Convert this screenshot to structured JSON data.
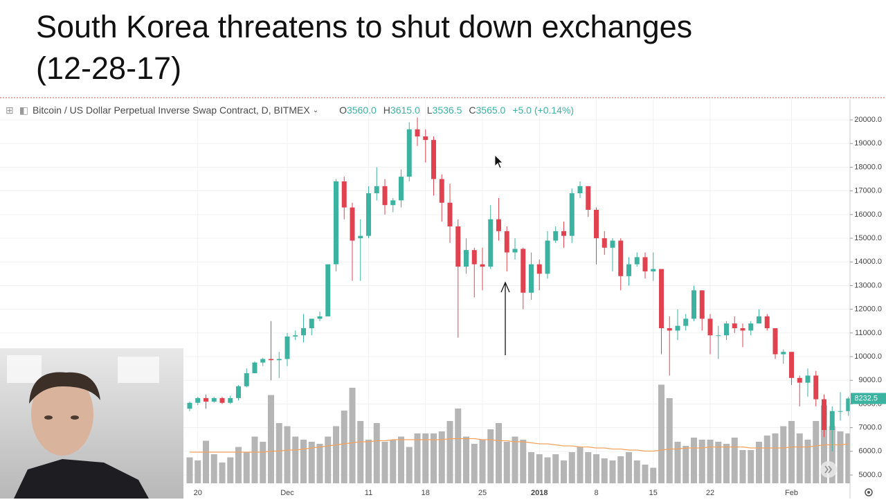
{
  "chart_data": {
    "type": "candlestick",
    "title": "South Korea threatens to shut down exchanges",
    "subtitle": "(12-28-17)",
    "symbol": "Bitcoin / US Dollar Perpetual Inverse Swap Contract, D, BITMEX",
    "ohlc_legend": [
      {
        "label": "O",
        "value": "3560.0"
      },
      {
        "label": "H",
        "value": "3615.0"
      },
      {
        "label": "L",
        "value": "3536.5"
      },
      {
        "label": "C",
        "value": "3565.0"
      }
    ],
    "change": "+5.0 (+0.14%)",
    "categories": [
      null,
      "20",
      null,
      null,
      null,
      null,
      null,
      null,
      null,
      null,
      null,
      null,
      "Dec",
      null,
      null,
      null,
      null,
      null,
      null,
      null,
      null,
      null,
      "11",
      null,
      null,
      null,
      null,
      null,
      null,
      "18",
      null,
      null,
      null,
      null,
      null,
      null,
      "25",
      null,
      null,
      null,
      null,
      null,
      null,
      "2018",
      null,
      null,
      null,
      null,
      null,
      null,
      "8",
      null,
      null,
      null,
      null,
      null,
      null,
      "15",
      null,
      null,
      null,
      null,
      null,
      null,
      "22",
      null,
      null,
      null,
      null,
      null,
      null,
      null,
      null,
      null,
      "Feb",
      null,
      null,
      null,
      null,
      null,
      null,
      null
    ],
    "open": [
      7800,
      8050,
      8250,
      8100,
      8250,
      8050,
      8250,
      8750,
      9300,
      9750,
      9900,
      9850,
      9900,
      10850,
      10900,
      11200,
      11600,
      11700,
      13900,
      17400,
      16300,
      15000,
      15100,
      16900,
      17200,
      16400,
      16600,
      17600,
      19600,
      19300,
      19150,
      17500,
      16500,
      15500,
      13800,
      14500,
      13900,
      13800,
      15800,
      15300,
      14400,
      14550,
      12700,
      13900,
      13500,
      14900,
      15300,
      15100,
      16900,
      17200,
      16200,
      15000,
      14600,
      14900,
      13400,
      13900,
      14200,
      13600,
      13700,
      11200,
      11100,
      11300,
      11600,
      12800,
      11600,
      10900,
      10900,
      11400,
      11200,
      11100,
      11400,
      11700,
      11200,
      10100,
      10200,
      9100,
      8900,
      9200,
      8200,
      6900,
      7700,
      7700
    ],
    "high": [
      8100,
      8300,
      8400,
      8300,
      8300,
      8350,
      8800,
      9500,
      9800,
      9950,
      11500,
      10200,
      11000,
      11100,
      11800,
      11600,
      11900,
      13900,
      17500,
      17600,
      16500,
      15800,
      17200,
      18000,
      17500,
      16700,
      17900,
      19900,
      20100,
      19600,
      19300,
      17700,
      17300,
      15800,
      15000,
      14600,
      14600,
      16400,
      16700,
      15500,
      15000,
      14600,
      14400,
      14100,
      15300,
      15500,
      15700,
      17100,
      17400,
      17200,
      16300,
      15300,
      15000,
      15000,
      14200,
      14400,
      14400,
      14400,
      13700,
      11700,
      12000,
      11800,
      13000,
      12800,
      11800,
      11300,
      11500,
      11700,
      11400,
      11500,
      12000,
      11800,
      11200,
      10300,
      10200,
      9200,
      9500,
      9400,
      8400,
      7900,
      8500,
      8300
    ],
    "low": [
      7700,
      7950,
      7800,
      8050,
      8000,
      8000,
      8150,
      8700,
      9300,
      9600,
      9000,
      9100,
      9600,
      10700,
      10600,
      10900,
      11500,
      11700,
      13600,
      15800,
      13200,
      13200,
      15000,
      16600,
      16000,
      16100,
      16300,
      17400,
      18900,
      18200,
      16800,
      15700,
      14800,
      10800,
      13500,
      12500,
      12800,
      13700,
      14900,
      13600,
      14100,
      12000,
      12400,
      12800,
      13300,
      14800,
      14600,
      14800,
      16700,
      15900,
      13900,
      14300,
      13600,
      12800,
      13000,
      13800,
      13300,
      13200,
      10100,
      9200,
      10700,
      11100,
      11500,
      11100,
      10100,
      9900,
      10700,
      11000,
      10400,
      10900,
      11400,
      11100,
      9900,
      9700,
      8800,
      7900,
      8300,
      7900,
      6600,
      6000,
      7300,
      7500
    ],
    "close": [
      8050,
      8250,
      8100,
      8250,
      8050,
      8250,
      8750,
      9300,
      9750,
      9900,
      9850,
      9900,
      10850,
      10900,
      11200,
      11600,
      11700,
      13900,
      17400,
      16300,
      14900,
      15100,
      16900,
      17200,
      16400,
      16600,
      17600,
      19600,
      19300,
      19150,
      17500,
      16500,
      15500,
      13800,
      14500,
      13900,
      13800,
      15800,
      15300,
      14400,
      14550,
      12700,
      13900,
      13500,
      14900,
      15300,
      15100,
      16900,
      17200,
      16200,
      15000,
      14600,
      14900,
      13400,
      13900,
      14200,
      13600,
      13700,
      11200,
      11100,
      11300,
      11600,
      12800,
      11600,
      10900,
      10900,
      11400,
      11200,
      11100,
      11400,
      11700,
      11200,
      10100,
      10200,
      9100,
      8900,
      9200,
      8200,
      6900,
      7700,
      7700,
      8232.5
    ],
    "up_color": "#3bb3a0",
    "down_color": "#e0434f",
    "volume": {
      "color": "#b5b5b5",
      "values": [
        25,
        22,
        41,
        28,
        20,
        25,
        35,
        30,
        45,
        40,
        85,
        58,
        55,
        45,
        42,
        40,
        38,
        45,
        55,
        70,
        92,
        60,
        42,
        58,
        40,
        42,
        45,
        35,
        48,
        48,
        48,
        50,
        60,
        72,
        45,
        38,
        42,
        52,
        58,
        40,
        45,
        42,
        30,
        28,
        25,
        28,
        22,
        30,
        35,
        30,
        28,
        24,
        22,
        26,
        30,
        22,
        18,
        15,
        95,
        82,
        40,
        36,
        44,
        42,
        42,
        40,
        38,
        44,
        32,
        32,
        40,
        46,
        48,
        55,
        60,
        48,
        42,
        60,
        75,
        55,
        50,
        48
      ]
    },
    "volume_ma": {
      "color": "#f5a25d",
      "values": [
        30,
        30,
        30,
        30,
        30,
        30,
        30,
        30,
        30,
        30,
        31,
        31,
        32,
        32,
        33,
        34,
        35,
        36,
        37,
        38,
        39,
        40,
        40,
        41,
        41,
        42,
        42,
        42,
        42,
        42,
        42,
        42,
        43,
        43,
        43,
        43,
        42,
        42,
        41,
        41,
        40,
        40,
        39,
        38,
        38,
        37,
        36,
        36,
        35,
        35,
        34,
        34,
        33,
        33,
        32,
        32,
        31,
        31,
        32,
        33,
        33,
        34,
        34,
        34,
        35,
        35,
        35,
        35,
        35,
        34,
        34,
        34,
        34,
        34,
        35,
        35,
        35,
        36,
        37,
        37,
        37,
        38
      ]
    },
    "vlim": [
      0,
      100
    ],
    "ylim": [
      4650,
      20880
    ],
    "yticks": [
      {
        "value": 5000,
        "label": "5000.0"
      },
      {
        "value": 6000,
        "label": "6000.0"
      },
      {
        "value": 7000,
        "label": "7000.0"
      },
      {
        "value": 8000,
        "label": "8000.0"
      },
      {
        "value": 9000,
        "label": "9000.0"
      },
      {
        "value": 10000,
        "label": "10000.0"
      },
      {
        "value": 11000,
        "label": "11000.0"
      },
      {
        "value": 12000,
        "label": "12000.0"
      },
      {
        "value": 13000,
        "label": "13000.0"
      },
      {
        "value": 14000,
        "label": "14000.0"
      },
      {
        "value": 15000,
        "label": "15000.0"
      },
      {
        "value": 16000,
        "label": "16000.0"
      },
      {
        "value": 17000,
        "label": "17000.0"
      },
      {
        "value": 18000,
        "label": "18000.0"
      },
      {
        "value": 19000,
        "label": "19000.0"
      },
      {
        "value": 20000,
        "label": "20000.0"
      }
    ],
    "grid": true
  }
}
